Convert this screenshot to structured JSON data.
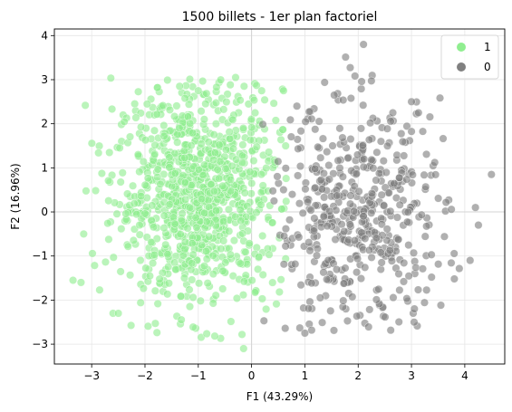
{
  "chart_data": {
    "type": "scatter",
    "title": "1500 billets - 1er plan factoriel",
    "xlabel": "F1 (43.29%)",
    "ylabel": "F2 (16.96%)",
    "xlim": [
      -3.7,
      4.75
    ],
    "ylim": [
      -3.45,
      4.15
    ],
    "xticks": [
      -3,
      -2,
      -1,
      0,
      1,
      2,
      3,
      4
    ],
    "yticks": [
      -3,
      -2,
      -1,
      0,
      1,
      2,
      3,
      4
    ],
    "grid": true,
    "origin_lines": true,
    "legend_position": "top-right",
    "series": [
      {
        "name": "1",
        "color": "#90ee90",
        "count": 1000,
        "center": [
          -1.0,
          0.4
        ],
        "x_range": [
          -3.35,
          0.7
        ],
        "y_range": [
          -3.1,
          3.05
        ],
        "notable_points": [
          [
            -3.35,
            -1.55
          ],
          [
            -3.2,
            -1.6
          ],
          [
            -3.15,
            -0.5
          ],
          [
            -2.6,
            -2.3
          ],
          [
            -2.5,
            -2.3
          ],
          [
            -1.35,
            2.85
          ],
          [
            -0.3,
            3.05
          ],
          [
            -0.15,
            -3.1
          ],
          [
            -1.0,
            2.75
          ],
          [
            0.6,
            2.75
          ]
        ]
      },
      {
        "name": "0",
        "color": "#808080",
        "count": 500,
        "center": [
          2.0,
          -0.2
        ],
        "x_range": [
          0.2,
          4.5
        ],
        "y_range": [
          -2.8,
          3.8
        ],
        "notable_points": [
          [
            2.1,
            3.8
          ],
          [
            1.55,
            2.65
          ],
          [
            3.0,
            2.5
          ],
          [
            1.0,
            -2.75
          ],
          [
            4.5,
            0.85
          ],
          [
            4.2,
            0.1
          ],
          [
            3.05,
            -2.5
          ],
          [
            0.85,
            2.4
          ],
          [
            2.65,
            2.25
          ],
          [
            4.1,
            -1.1
          ]
        ]
      }
    ]
  }
}
